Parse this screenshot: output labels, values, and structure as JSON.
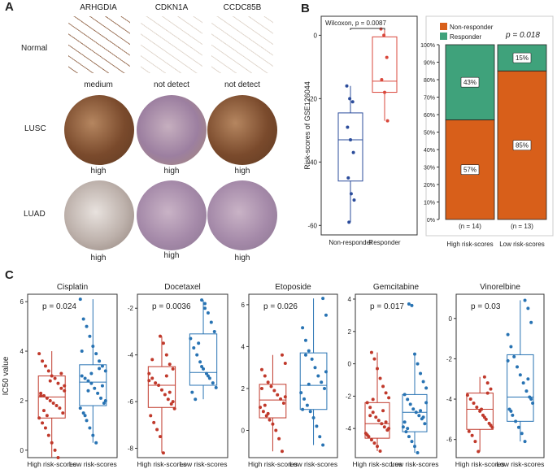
{
  "panel_labels": [
    "A",
    "B",
    "C"
  ],
  "panelA": {
    "columns": [
      "ARHGDIA",
      "CDKN1A",
      "CCDC85B"
    ],
    "rows": [
      {
        "label": "Normal",
        "captions": [
          "medium",
          "not detect",
          "not detect"
        ]
      },
      {
        "label": "LUSC",
        "captions": [
          "high",
          "high",
          "high"
        ]
      },
      {
        "label": "LUAD",
        "captions": [
          "high",
          "high",
          "high"
        ]
      }
    ],
    "colors": {
      "normal": "#c9b8a8",
      "brown": "#8a5a3b",
      "purple": "#a58aa9"
    }
  },
  "chart_data": [
    {
      "type": "box",
      "panel": "B-left",
      "categories": [
        "Non-responder",
        "Responder"
      ],
      "annotation": "Wilcoxon, p = 0.0087",
      "ylabel": "Risk-scores of GSE126044",
      "ylim": [
        -63,
        6
      ],
      "yticks": [
        0,
        -20,
        -40,
        -60
      ],
      "colors": [
        "#2b4c9b",
        "#d9473b"
      ],
      "boxes": [
        {
          "q1": -46,
          "median": -33,
          "q3": -24.5,
          "lo": -59,
          "hi": -16
        },
        {
          "q1": -18,
          "median": -14.5,
          "q3": -0.5,
          "lo": -27,
          "hi": 2
        }
      ],
      "points": [
        [
          -16,
          -20,
          -21,
          -29,
          -33,
          -37,
          -45,
          -50,
          -52,
          -59
        ],
        [
          2,
          0,
          -7,
          -14,
          -18,
          -27
        ]
      ]
    },
    {
      "type": "stacked_bar",
      "panel": "B-right",
      "categories": [
        "High risk-scores",
        "Low risk-scores"
      ],
      "series": [
        {
          "name": "Non-responder",
          "values": [
            57,
            85
          ],
          "color": "#d85f1a"
        },
        {
          "name": "Responder",
          "values": [
            43,
            15
          ],
          "color": "#3fa27b"
        }
      ],
      "labels": [
        [
          "57%",
          "43%"
        ],
        [
          "85%",
          "15%"
        ]
      ],
      "ns": [
        "(n = 14)",
        "(n = 13)"
      ],
      "pvalue": "p = 0.018",
      "yticks": [
        "0%",
        "10%",
        "20%",
        "30%",
        "40%",
        "50%",
        "60%",
        "70%",
        "80%",
        "90%",
        "100%"
      ],
      "legend_position": "top-left"
    },
    {
      "type": "box",
      "panel": "C",
      "ylabel": "IC50 value",
      "group_labels": [
        "High risk-scores",
        "Low risk-scores"
      ],
      "colors": [
        "#c0392b",
        "#2873b3"
      ],
      "drugs": [
        {
          "name": "Cisplatin",
          "p": "p = 0.024",
          "ylim": [
            -0.3,
            6.3
          ],
          "yticks": [
            0,
            2,
            4,
            6
          ],
          "boxes": [
            {
              "q1": 1.3,
              "median": 2.15,
              "q3": 3.0,
              "lo": -0.3,
              "hi": 4.0
            },
            {
              "q1": 1.8,
              "median": 2.75,
              "q3": 3.45,
              "lo": 0.3,
              "hi": 6.1
            }
          ],
          "points": [
            [
              3.9,
              3.6,
              3.4,
              3.2,
              3.0,
              2.9,
              2.7,
              2.5,
              2.4,
              2.3,
              2.2,
              2.1,
              2.0,
              1.9,
              1.8,
              1.7,
              1.5,
              1.3,
              1.1,
              0.9,
              0.6,
              0.3,
              0.0,
              -0.3,
              3.1,
              2.6,
              2.2,
              1.6,
              1.4,
              2.8
            ],
            [
              6.1,
              5.3,
              5.0,
              4.6,
              4.2,
              3.9,
              3.6,
              3.4,
              3.2,
              3.0,
              2.9,
              2.8,
              2.7,
              2.5,
              2.3,
              2.1,
              1.9,
              1.7,
              1.5,
              1.2,
              0.9,
              0.6,
              0.3,
              3.3,
              2.6,
              2.0,
              4.0,
              1.4,
              2.4,
              3.1
            ]
          ]
        },
        {
          "name": "Docetaxel",
          "p": "p = 0.0036",
          "ylim": [
            -8.4,
            -1.4
          ],
          "yticks": [
            -2,
            -4,
            -6,
            -8
          ],
          "boxes": [
            {
              "q1": -6.25,
              "median": -5.3,
              "q3": -4.5,
              "lo": -8.2,
              "hi": -3.2
            },
            {
              "q1": -5.3,
              "median": -4.75,
              "q3": -3.1,
              "lo": -5.9,
              "hi": -1.65
            }
          ],
          "points": [
            [
              -3.2,
              -3.5,
              -4.0,
              -4.4,
              -4.6,
              -4.8,
              -5.0,
              -5.2,
              -5.3,
              -5.5,
              -5.7,
              -5.9,
              -6.1,
              -6.3,
              -6.6,
              -6.9,
              -7.2,
              -7.5,
              -8.2,
              -4.9,
              -5.6,
              -6.0,
              -5.1,
              -4.2
            ],
            [
              -1.65,
              -1.8,
              -2.2,
              -2.6,
              -3.0,
              -3.3,
              -3.7,
              -4.0,
              -4.3,
              -4.6,
              -4.8,
              -5.0,
              -5.2,
              -5.4,
              -5.6,
              -5.9,
              -3.5,
              -4.5,
              -2.0,
              -4.9
            ]
          ]
        },
        {
          "name": "Etoposide",
          "p": "p = 0.026",
          "ylim": [
            -1.3,
            6.5
          ],
          "yticks": [
            0,
            2,
            4,
            6
          ],
          "boxes": [
            {
              "q1": 0.6,
              "median": 1.45,
              "q3": 2.2,
              "lo": -1.0,
              "hi": 3.6
            },
            {
              "q1": 1.0,
              "median": 2.15,
              "q3": 3.7,
              "lo": -0.7,
              "hi": 6.3
            }
          ],
          "points": [
            [
              3.6,
              3.2,
              2.9,
              2.6,
              2.3,
              2.1,
              1.9,
              1.7,
              1.5,
              1.3,
              1.1,
              0.9,
              0.7,
              0.5,
              0.3,
              0.0,
              -0.4,
              -1.0,
              1.6,
              2.0,
              1.2,
              0.8
            ],
            [
              6.3,
              5.5,
              4.9,
              4.3,
              3.8,
              3.4,
              3.0,
              2.6,
              2.3,
              2.0,
              1.8,
              1.5,
              1.2,
              0.9,
              0.6,
              0.2,
              -0.3,
              -0.7,
              2.8,
              1.0,
              3.6,
              2.2
            ]
          ]
        },
        {
          "name": "Gemcitabine",
          "p": "p = 0.017",
          "ylim": [
            -5.8,
            4.3
          ],
          "yticks": [
            4,
            2,
            0,
            -2,
            -4
          ],
          "boxes": [
            {
              "q1": -4.6,
              "median": -3.7,
              "q3": -2.4,
              "lo": -5.4,
              "hi": 0.7
            },
            {
              "q1": -4.2,
              "median": -3.0,
              "q3": -1.9,
              "lo": -5.5,
              "hi": 0.6
            }
          ],
          "points": [
            [
              0.7,
              0.3,
              -0.3,
              -0.9,
              -1.4,
              -1.8,
              -2.1,
              -2.4,
              -2.7,
              -3.0,
              -3.3,
              -3.5,
              -3.7,
              -3.9,
              -4.1,
              -4.3,
              -4.5,
              -4.7,
              -4.9,
              -5.1,
              -5.4,
              -2.9,
              -3.6,
              -4.0,
              -4.4,
              -3.2,
              -2.2
            ],
            [
              3.7,
              3.6,
              0.6,
              0.0,
              -0.6,
              -1.1,
              -1.5,
              -1.9,
              -2.2,
              -2.5,
              -2.8,
              -3.0,
              -3.2,
              -3.4,
              -3.7,
              -3.9,
              -4.2,
              -4.5,
              -4.8,
              -5.1,
              -5.5,
              -2.9,
              -3.3,
              -2.4,
              -3.6,
              -4.0
            ]
          ]
        },
        {
          "name": "Vinorelbine",
          "p": "p = 0.03",
          "ylim": [
            -6.9,
            1.2
          ],
          "yticks": [
            0,
            -2,
            -4,
            -6
          ],
          "boxes": [
            {
              "q1": -5.5,
              "median": -4.5,
              "q3": -3.7,
              "lo": -6.6,
              "hi": -2.9
            },
            {
              "q1": -5.1,
              "median": -3.9,
              "q3": -1.8,
              "lo": -6.1,
              "hi": 0.9
            }
          ],
          "points": [
            [
              -2.9,
              -3.2,
              -3.5,
              -3.8,
              -4.0,
              -4.2,
              -4.4,
              -4.6,
              -4.8,
              -5.0,
              -5.2,
              -5.4,
              -5.6,
              -5.8,
              -6.1,
              -6.6,
              -4.5,
              -4.9,
              -3.7,
              -5.3
            ],
            [
              0.9,
              0.5,
              -0.2,
              -0.8,
              -1.4,
              -1.9,
              -2.4,
              -2.8,
              -3.2,
              -3.6,
              -3.9,
              -4.2,
              -4.5,
              -4.8,
              -5.1,
              -5.4,
              -5.7,
              -6.1,
              -3.0,
              -4.0,
              -2.1,
              -4.6
            ]
          ]
        }
      ]
    }
  ]
}
